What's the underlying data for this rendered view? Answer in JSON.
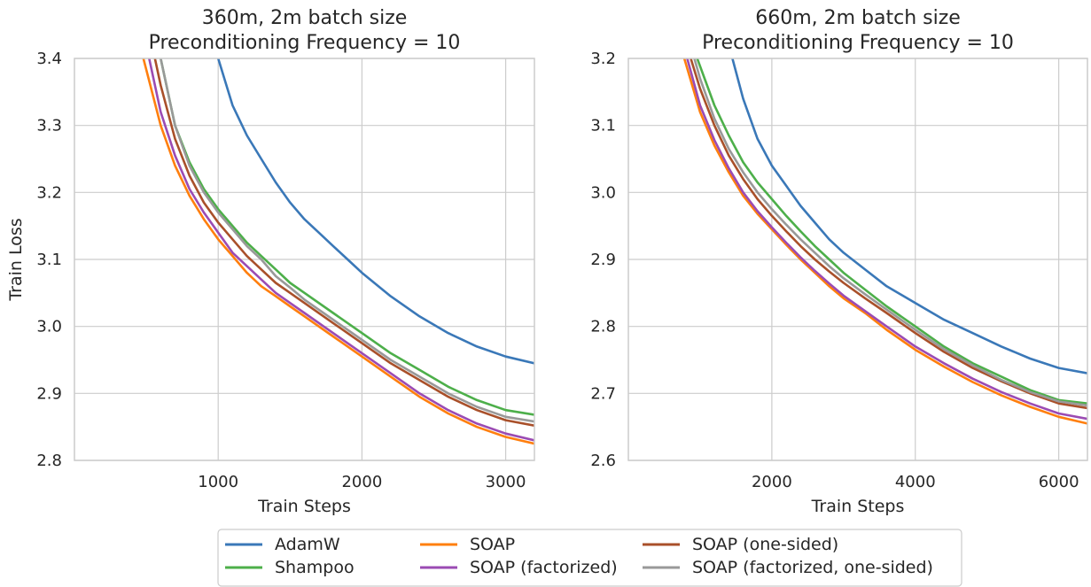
{
  "chart_data": [
    {
      "type": "line",
      "title": "360m, 2m batch size",
      "subtitle": "Preconditioning Frequency = 10",
      "xlabel": "Train Steps",
      "ylabel": "Train Loss",
      "xlim": [
        0,
        3200
      ],
      "ylim": [
        2.8,
        3.4
      ],
      "xticks": [
        1000,
        2000,
        3000
      ],
      "yticks": [
        2.8,
        2.9,
        3.0,
        3.1,
        3.2,
        3.3,
        3.4
      ],
      "xtick_labels": [
        "1000",
        "2000",
        "3000"
      ],
      "ytick_labels": [
        "2.8",
        "2.9",
        "3.0",
        "3.1",
        "3.2",
        "3.3",
        "3.4"
      ],
      "grid": true,
      "series": [
        {
          "name": "AdamW",
          "x": [
            1000,
            1100,
            1200,
            1300,
            1400,
            1500,
            1600,
            1700,
            1800,
            1900,
            2000,
            2200,
            2400,
            2600,
            2800,
            3000,
            3200
          ],
          "y": [
            3.4,
            3.33,
            3.285,
            3.25,
            3.215,
            3.185,
            3.16,
            3.14,
            3.12,
            3.1,
            3.08,
            3.045,
            3.015,
            2.99,
            2.97,
            2.955,
            2.945
          ]
        },
        {
          "name": "Shampoo",
          "x": [
            600,
            700,
            800,
            900,
            1000,
            1100,
            1200,
            1300,
            1400,
            1500,
            1600,
            1800,
            2000,
            2200,
            2400,
            2600,
            2800,
            3000,
            3200
          ],
          "y": [
            3.4,
            3.3,
            3.245,
            3.205,
            3.175,
            3.15,
            3.125,
            3.105,
            3.085,
            3.065,
            3.05,
            3.02,
            2.99,
            2.96,
            2.935,
            2.91,
            2.89,
            2.875,
            2.868
          ]
        },
        {
          "name": "SOAP",
          "x": [
            480,
            600,
            700,
            800,
            900,
            1000,
            1100,
            1200,
            1300,
            1400,
            1500,
            1600,
            1800,
            2000,
            2200,
            2400,
            2600,
            2800,
            3000,
            3200
          ],
          "y": [
            3.4,
            3.3,
            3.24,
            3.195,
            3.16,
            3.13,
            3.105,
            3.08,
            3.06,
            3.045,
            3.03,
            3.015,
            2.985,
            2.955,
            2.925,
            2.895,
            2.87,
            2.85,
            2.835,
            2.825
          ]
        },
        {
          "name": "SOAP (factorized)",
          "x": [
            520,
            600,
            700,
            800,
            900,
            1000,
            1100,
            1200,
            1300,
            1400,
            1500,
            1600,
            1800,
            2000,
            2200,
            2400,
            2600,
            2800,
            3000,
            3200
          ],
          "y": [
            3.4,
            3.32,
            3.255,
            3.205,
            3.17,
            3.14,
            3.11,
            3.09,
            3.07,
            3.05,
            3.035,
            3.02,
            2.99,
            2.96,
            2.93,
            2.9,
            2.875,
            2.855,
            2.84,
            2.83
          ]
        },
        {
          "name": "SOAP (one-sided)",
          "x": [
            560,
            600,
            700,
            800,
            900,
            1000,
            1100,
            1200,
            1300,
            1400,
            1500,
            1600,
            1800,
            2000,
            2200,
            2400,
            2600,
            2800,
            3000,
            3200
          ],
          "y": [
            3.4,
            3.36,
            3.28,
            3.225,
            3.185,
            3.155,
            3.13,
            3.105,
            3.085,
            3.065,
            3.05,
            3.035,
            3.005,
            2.975,
            2.945,
            2.92,
            2.895,
            2.875,
            2.86,
            2.852
          ]
        },
        {
          "name": "SOAP (factorized, one-sided)",
          "x": [
            600,
            700,
            800,
            900,
            1000,
            1100,
            1200,
            1300,
            1400,
            1500,
            1600,
            1800,
            2000,
            2200,
            2400,
            2600,
            2800,
            3000,
            3200
          ],
          "y": [
            3.4,
            3.3,
            3.24,
            3.2,
            3.17,
            3.145,
            3.12,
            3.1,
            3.075,
            3.058,
            3.04,
            3.01,
            2.98,
            2.95,
            2.925,
            2.9,
            2.88,
            2.865,
            2.858
          ]
        }
      ]
    },
    {
      "type": "line",
      "title": "660m, 2m batch size",
      "subtitle": "Preconditioning Frequency = 10",
      "xlabel": "Train Steps",
      "ylabel": "",
      "xlim": [
        0,
        6400
      ],
      "ylim": [
        2.6,
        3.2
      ],
      "xticks": [
        2000,
        4000,
        6000
      ],
      "yticks": [
        2.6,
        2.7,
        2.8,
        2.9,
        3.0,
        3.1,
        3.2
      ],
      "xtick_labels": [
        "2000",
        "4000",
        "6000"
      ],
      "ytick_labels": [
        "2.6",
        "2.7",
        "2.8",
        "2.9",
        "3.0",
        "3.1",
        "3.2"
      ],
      "grid": true,
      "series": [
        {
          "name": "AdamW",
          "x": [
            1450,
            1600,
            1800,
            2000,
            2200,
            2400,
            2600,
            2800,
            3000,
            3300,
            3600,
            4000,
            4400,
            4800,
            5200,
            5600,
            6000,
            6400
          ],
          "y": [
            3.2,
            3.14,
            3.08,
            3.04,
            3.01,
            2.98,
            2.955,
            2.93,
            2.91,
            2.885,
            2.86,
            2.835,
            2.81,
            2.79,
            2.77,
            2.752,
            2.738,
            2.73
          ]
        },
        {
          "name": "Shampoo",
          "x": [
            960,
            1200,
            1400,
            1600,
            1800,
            2000,
            2200,
            2400,
            2600,
            2800,
            3000,
            3300,
            3600,
            4000,
            4400,
            4800,
            5200,
            5600,
            6000,
            6400
          ],
          "y": [
            3.2,
            3.13,
            3.085,
            3.045,
            3.015,
            2.99,
            2.965,
            2.942,
            2.92,
            2.9,
            2.88,
            2.855,
            2.83,
            2.8,
            2.77,
            2.745,
            2.725,
            2.705,
            2.69,
            2.685
          ]
        },
        {
          "name": "SOAP",
          "x": [
            780,
            1000,
            1200,
            1400,
            1600,
            1800,
            2000,
            2200,
            2400,
            2600,
            2800,
            3000,
            3300,
            3600,
            4000,
            4400,
            4800,
            5200,
            5600,
            6000,
            6400
          ],
          "y": [
            3.2,
            3.12,
            3.07,
            3.03,
            2.995,
            2.968,
            2.945,
            2.922,
            2.9,
            2.88,
            2.86,
            2.842,
            2.82,
            2.795,
            2.765,
            2.74,
            2.717,
            2.697,
            2.68,
            2.665,
            2.655
          ]
        },
        {
          "name": "SOAP (factorized)",
          "x": [
            820,
            1000,
            1200,
            1400,
            1600,
            1800,
            2000,
            2200,
            2400,
            2600,
            2800,
            3000,
            3300,
            3600,
            4000,
            4400,
            4800,
            5200,
            5600,
            6000,
            6400
          ],
          "y": [
            3.2,
            3.13,
            3.078,
            3.036,
            3.0,
            2.972,
            2.948,
            2.925,
            2.903,
            2.883,
            2.864,
            2.846,
            2.823,
            2.8,
            2.77,
            2.745,
            2.722,
            2.702,
            2.685,
            2.67,
            2.662
          ]
        },
        {
          "name": "SOAP (one-sided)",
          "x": [
            870,
            1000,
            1200,
            1400,
            1600,
            1800,
            2000,
            2200,
            2400,
            2600,
            2800,
            3000,
            3300,
            3600,
            4000,
            4400,
            4800,
            5200,
            5600,
            6000,
            6400
          ],
          "y": [
            3.2,
            3.155,
            3.1,
            3.055,
            3.02,
            2.99,
            2.965,
            2.942,
            2.92,
            2.9,
            2.882,
            2.865,
            2.842,
            2.82,
            2.79,
            2.762,
            2.738,
            2.718,
            2.7,
            2.685,
            2.678
          ]
        },
        {
          "name": "SOAP (factorized, one-sided)",
          "x": [
            920,
            1000,
            1200,
            1400,
            1600,
            1800,
            2000,
            2200,
            2400,
            2600,
            2800,
            3000,
            3300,
            3600,
            4000,
            4400,
            4800,
            5200,
            5600,
            6000,
            6400
          ],
          "y": [
            3.2,
            3.17,
            3.11,
            3.065,
            3.03,
            3.0,
            2.975,
            2.952,
            2.93,
            2.91,
            2.89,
            2.872,
            2.848,
            2.825,
            2.795,
            2.766,
            2.742,
            2.72,
            2.702,
            2.688,
            2.682
          ]
        }
      ]
    }
  ],
  "legend": {
    "location": "bottom-center",
    "entries": [
      {
        "label": "AdamW",
        "color": "#3a78b8"
      },
      {
        "label": "Shampoo",
        "color": "#4daf4a"
      },
      {
        "label": "SOAP",
        "color": "#ff7f0e"
      },
      {
        "label": "SOAP (factorized)",
        "color": "#9b4bb3"
      },
      {
        "label": "SOAP (one-sided)",
        "color": "#a9502a"
      },
      {
        "label": "SOAP (factorized, one-sided)",
        "color": "#999999"
      }
    ]
  }
}
